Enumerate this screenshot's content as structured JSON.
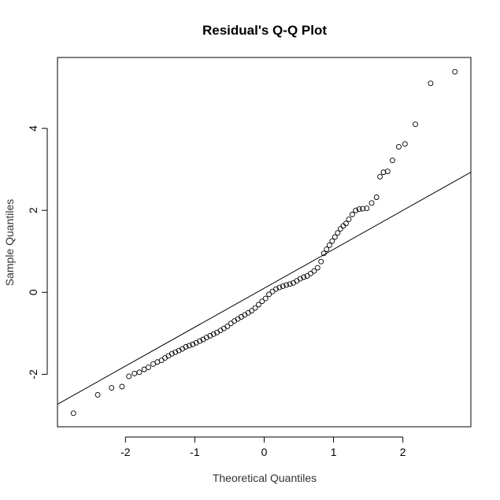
{
  "chart_data": {
    "type": "scatter",
    "title": "Residual's Q-Q Plot",
    "xlabel": "Theoretical Quantiles",
    "ylabel": "Sample Quantiles",
    "xlim": [
      -2.98,
      2.98
    ],
    "ylim": [
      -3.28,
      5.73
    ],
    "x_ticks": [
      -2,
      -1,
      0,
      1,
      2
    ],
    "x_tick_labels": [
      "-2",
      "-1",
      "0",
      "1",
      "2"
    ],
    "y_ticks": [
      -2,
      0,
      2,
      4
    ],
    "y_tick_labels": [
      "-2",
      "0",
      "2",
      "4"
    ],
    "grid": false,
    "reference_line": {
      "intercept": 0.1,
      "slope": 0.95
    },
    "series": [
      {
        "points": [
          [
            -2.75,
            -2.95
          ],
          [
            -2.4,
            -2.5
          ],
          [
            -2.2,
            -2.33
          ],
          [
            -2.05,
            -2.3
          ],
          [
            -1.95,
            -2.05
          ],
          [
            -1.87,
            -1.98
          ],
          [
            -1.8,
            -1.95
          ],
          [
            -1.73,
            -1.88
          ],
          [
            -1.67,
            -1.83
          ],
          [
            -1.6,
            -1.75
          ],
          [
            -1.54,
            -1.7
          ],
          [
            -1.48,
            -1.66
          ],
          [
            -1.43,
            -1.6
          ],
          [
            -1.38,
            -1.55
          ],
          [
            -1.33,
            -1.5
          ],
          [
            -1.28,
            -1.46
          ],
          [
            -1.23,
            -1.42
          ],
          [
            -1.18,
            -1.38
          ],
          [
            -1.13,
            -1.33
          ],
          [
            -1.08,
            -1.3
          ],
          [
            -1.03,
            -1.27
          ],
          [
            -0.98,
            -1.23
          ],
          [
            -0.93,
            -1.19
          ],
          [
            -0.88,
            -1.15
          ],
          [
            -0.83,
            -1.1
          ],
          [
            -0.78,
            -1.06
          ],
          [
            -0.73,
            -1.02
          ],
          [
            -0.68,
            -0.98
          ],
          [
            -0.63,
            -0.93
          ],
          [
            -0.58,
            -0.88
          ],
          [
            -0.53,
            -0.83
          ],
          [
            -0.48,
            -0.76
          ],
          [
            -0.43,
            -0.7
          ],
          [
            -0.38,
            -0.65
          ],
          [
            -0.33,
            -0.6
          ],
          [
            -0.28,
            -0.55
          ],
          [
            -0.23,
            -0.5
          ],
          [
            -0.18,
            -0.45
          ],
          [
            -0.13,
            -0.38
          ],
          [
            -0.08,
            -0.3
          ],
          [
            -0.03,
            -0.22
          ],
          [
            0.02,
            -0.15
          ],
          [
            0.07,
            -0.05
          ],
          [
            0.12,
            0.02
          ],
          [
            0.17,
            0.08
          ],
          [
            0.22,
            0.12
          ],
          [
            0.27,
            0.15
          ],
          [
            0.32,
            0.18
          ],
          [
            0.37,
            0.2
          ],
          [
            0.42,
            0.23
          ],
          [
            0.47,
            0.28
          ],
          [
            0.52,
            0.33
          ],
          [
            0.57,
            0.37
          ],
          [
            0.62,
            0.4
          ],
          [
            0.67,
            0.46
          ],
          [
            0.72,
            0.52
          ],
          [
            0.77,
            0.6
          ],
          [
            0.82,
            0.75
          ],
          [
            0.86,
            0.95
          ],
          [
            0.9,
            1.05
          ],
          [
            0.94,
            1.15
          ],
          [
            0.98,
            1.25
          ],
          [
            1.02,
            1.35
          ],
          [
            1.06,
            1.45
          ],
          [
            1.1,
            1.55
          ],
          [
            1.14,
            1.62
          ],
          [
            1.18,
            1.68
          ],
          [
            1.22,
            1.78
          ],
          [
            1.27,
            1.9
          ],
          [
            1.32,
            2.0
          ],
          [
            1.37,
            2.03
          ],
          [
            1.42,
            2.04
          ],
          [
            1.48,
            2.05
          ],
          [
            1.55,
            2.18
          ],
          [
            1.62,
            2.32
          ],
          [
            1.67,
            2.82
          ],
          [
            1.72,
            2.93
          ],
          [
            1.78,
            2.95
          ],
          [
            1.85,
            3.22
          ],
          [
            1.94,
            3.55
          ],
          [
            2.03,
            3.62
          ],
          [
            2.18,
            4.1
          ],
          [
            2.4,
            5.1
          ],
          [
            2.75,
            5.38
          ]
        ]
      }
    ]
  }
}
